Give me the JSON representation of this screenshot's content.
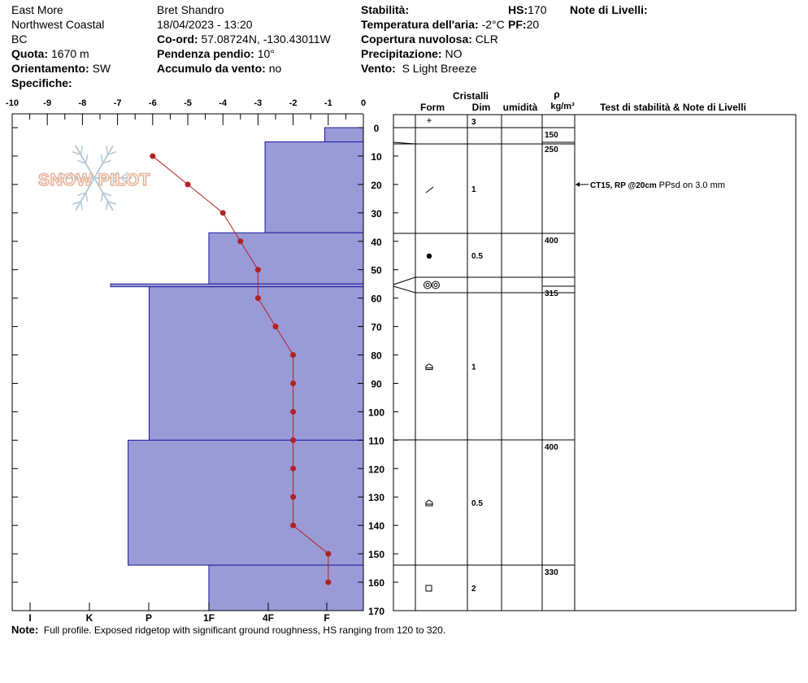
{
  "header": {
    "location": "East More",
    "region": "Northwest Coastal",
    "province": "BC",
    "elevation_label": "Quota:",
    "elevation_value": "1670 m",
    "aspect_label": "Orientamento:",
    "aspect_value": "SW",
    "specifics_label": "Specifiche:",
    "observer": "Bret Shandro",
    "datetime": "18/04/2023 - 13:20",
    "coords_label": "Co-ord:",
    "coords_value": "57.08724N, -130.43011W",
    "slope_label": "Pendenza pendio:",
    "slope_value": "10°",
    "wind_load_label": "Accumulo da vento:",
    "wind_load_value": "no",
    "stability_label": "Stabilità:",
    "air_temp_label": "Temperatura dell'aria:",
    "air_temp_value": "-2°C",
    "cloud_label": "Copertura nuvolosa:",
    "cloud_value": "CLR",
    "precip_label": "Precipitazione:",
    "precip_value": "NO",
    "wind_label": "Vento:",
    "wind_value": "S Light Breeze",
    "hs_label": "HS:",
    "hs_value": "170",
    "pf_label": "PF:",
    "pf_value": "20",
    "layer_notes_label": "Note di Livelli:"
  },
  "table_headers": {
    "crystals": "Cristalli",
    "form": "Form",
    "size": "Dim",
    "moisture": "umidità",
    "rho": "ρ",
    "density_unit": "kg/m³",
    "stability_notes": "Test di stabilità & Note di Livelli"
  },
  "watermark": "SNOW PILOT",
  "note": {
    "label": "Note:",
    "text": "Full profile. Exposed ridgetop with significant ground roughness, HS ranging from 120 to 320."
  },
  "colors": {
    "hardness_fill": "#9a9ad6",
    "hardness_stroke": "#1c1c9e",
    "temperature": "#b22222",
    "watermark": "#e8b49a"
  },
  "chart_data": {
    "type": "snow-profile",
    "temperature_axis": {
      "ticks": [
        "-10",
        "-9",
        "-8",
        "-7",
        "-6",
        "-5",
        "-4",
        "-3",
        "-2",
        "-1",
        "0"
      ],
      "range": [
        -10,
        0
      ]
    },
    "depth_axis": {
      "ticks": [
        "0",
        "10",
        "20",
        "30",
        "40",
        "50",
        "60",
        "70",
        "80",
        "90",
        "100",
        "110",
        "120",
        "130",
        "140",
        "150",
        "160",
        "170"
      ],
      "range": [
        0,
        170
      ]
    },
    "hardness_axis": {
      "ticks": [
        "I",
        "K",
        "P",
        "1F",
        "4F",
        "F"
      ],
      "tick_values": [
        10,
        8,
        6,
        4,
        2,
        1
      ]
    },
    "hardness_layers": [
      {
        "top": 0,
        "bottom": 5,
        "value": 1.1
      },
      {
        "top": 5,
        "bottom": 37,
        "value": 2.8
      },
      {
        "top": 37,
        "bottom": 55,
        "value": 4.4
      },
      {
        "top": 55,
        "bottom": 56,
        "value": 7.2
      },
      {
        "top": 56,
        "bottom": 110,
        "value": 6.1
      },
      {
        "top": 110,
        "bottom": 154,
        "value": 6.7
      },
      {
        "top": 154,
        "bottom": 170,
        "value": 4.4
      }
    ],
    "temperature_profile": [
      {
        "depth": 10,
        "temp": -6.0
      },
      {
        "depth": 20,
        "temp": -5.0
      },
      {
        "depth": 30,
        "temp": -4.0
      },
      {
        "depth": 40,
        "temp": -3.5
      },
      {
        "depth": 50,
        "temp": -3.0
      },
      {
        "depth": 60,
        "temp": -3.0
      },
      {
        "depth": 70,
        "temp": -2.5
      },
      {
        "depth": 80,
        "temp": -2.0
      },
      {
        "depth": 90,
        "temp": -2.0
      },
      {
        "depth": 100,
        "temp": -2.0
      },
      {
        "depth": 110,
        "temp": -2.0
      },
      {
        "depth": 120,
        "temp": -2.0
      },
      {
        "depth": 130,
        "temp": -2.0
      },
      {
        "depth": 140,
        "temp": -2.0
      },
      {
        "depth": 150,
        "temp": -1.0
      },
      {
        "depth": 160,
        "temp": -1.0
      }
    ],
    "layer_rows": [
      {
        "top": 0,
        "bottom": 5,
        "form": "+",
        "size": "3",
        "density": "150",
        "density_depth": 5
      },
      {
        "top": 5,
        "bottom": 37,
        "form": "/",
        "size": "1",
        "density": "250",
        "density_depth": 5
      },
      {
        "top": 37,
        "bottom": 55,
        "form": "●",
        "size": "0.5",
        "density": "400",
        "density_depth": 37
      },
      {
        "top": 55,
        "bottom": 56,
        "form": "◎◎",
        "size": "",
        "density": "",
        "density_depth": null
      },
      {
        "top": 56,
        "bottom": 110,
        "form": "⌂",
        "size": "1",
        "density": "315",
        "density_depth": 56
      },
      {
        "top": 110,
        "bottom": 154,
        "form": "⌂",
        "size": "0.5",
        "density": "400",
        "density_depth": 110
      },
      {
        "top": 154,
        "bottom": 170,
        "form": "□",
        "size": "2",
        "density": "330",
        "density_depth": 154
      }
    ],
    "stability_tests": [
      {
        "depth": 20,
        "label": "CT15, RP @20cm",
        "comment": "PPsd on 3.0 mm"
      }
    ]
  }
}
